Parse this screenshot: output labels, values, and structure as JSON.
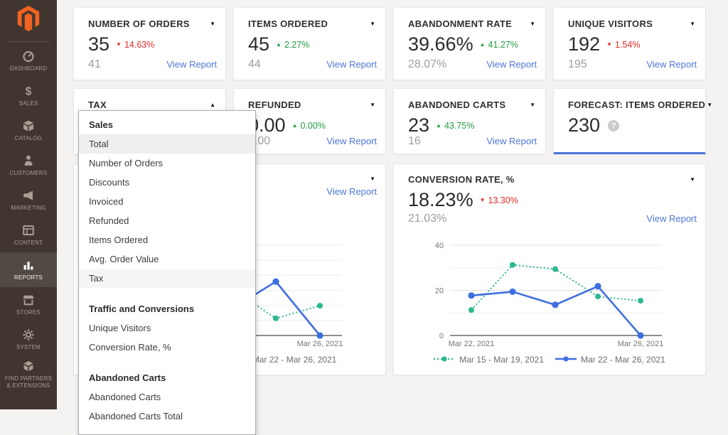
{
  "app": {
    "name": "Magento Admin — Advanced Reporting"
  },
  "colors": {
    "accent_blue": "#4a77d9",
    "chart_green": "#2bb78f",
    "chart_blue": "#3e6fe0",
    "delta_up_green": "#219a3f",
    "delta_down_red": "#e02b27",
    "sidebar_bg": "#41362f",
    "sidebar_selected_bg": "#514943",
    "logo_orange": "#f26322",
    "forecast_underline": "#4a77d9"
  },
  "sidebar": {
    "items": [
      {
        "label": "DASHBOARD",
        "icon": "gauge-icon"
      },
      {
        "label": "SALES",
        "icon": "dollar-icon"
      },
      {
        "label": "CATALOG",
        "icon": "box-icon"
      },
      {
        "label": "CUSTOMERS",
        "icon": "person-icon"
      },
      {
        "label": "MARKETING",
        "icon": "megaphone-icon"
      },
      {
        "label": "CONTENT",
        "icon": "layout-icon"
      },
      {
        "label": "REPORTS",
        "icon": "bar-chart-icon",
        "selected": true
      },
      {
        "label": "STORES",
        "icon": "storefront-icon"
      },
      {
        "label": "SYSTEM",
        "icon": "gear-icon"
      },
      {
        "label": "FIND PARTNERS & EXTENSIONS",
        "icon": "package-icon"
      }
    ]
  },
  "metric_cards": [
    {
      "id": "number-of-orders",
      "title": "NUMBER OF ORDERS",
      "value": "35",
      "delta": "14.63%",
      "delta_dir": "down",
      "prev": "41",
      "link": "View Report"
    },
    {
      "id": "items-ordered",
      "title": "ITEMS ORDERED",
      "value": "45",
      "delta": "2.27%",
      "delta_dir": "up",
      "prev": "44",
      "link": "View Report"
    },
    {
      "id": "abandonment-rate",
      "title": "ABANDONMENT RATE",
      "value": "39.66%",
      "delta": "41.27%",
      "delta_dir": "up",
      "prev": "28.07%",
      "link": "View Report"
    },
    {
      "id": "unique-visitors",
      "title": "UNIQUE VISITORS",
      "value": "192",
      "delta": "1.54%",
      "delta_dir": "down",
      "prev": "195",
      "link": "View Report"
    },
    {
      "id": "tax",
      "title": "TAX",
      "dropdown_open": true
    },
    {
      "id": "refunded",
      "title": "REFUNDED",
      "value": "0.00",
      "delta": "0.00%",
      "delta_dir": "up",
      "prev": "0.00",
      "link": "View Report"
    },
    {
      "id": "abandoned-carts",
      "title": "ABANDONED CARTS",
      "value": "23",
      "delta": "43.75%",
      "delta_dir": "up",
      "prev": "16",
      "link": "View Report"
    },
    {
      "id": "forecast-items-ordered",
      "title": "FORECAST: ITEMS ORDERED",
      "value": "230",
      "has_help": true,
      "highlighted": true
    }
  ],
  "dropdown": {
    "sections": [
      {
        "header": "Sales",
        "items": [
          "Total",
          "Number of Orders",
          "Discounts",
          "Invoiced",
          "Refunded",
          "Items Ordered",
          "Avg. Order Value",
          "Tax"
        ]
      },
      {
        "header": "Traffic and Conversions",
        "items": [
          "Unique Visitors",
          "Conversion Rate, %"
        ]
      },
      {
        "header": "Abandoned Carts",
        "items": [
          "Abandoned Carts",
          "Abandoned Carts Total"
        ]
      }
    ],
    "selected_item": "Tax",
    "hovered_item": "Total"
  },
  "chart_cards": {
    "left": {
      "link": "View Report"
    },
    "right": {
      "title": "CONVERSION RATE, %",
      "value": "18.23%",
      "delta": "13.30%",
      "delta_dir": "down",
      "prev": "21.03%",
      "link": "View Report"
    }
  },
  "chart_data": [
    {
      "id": "tax-trend",
      "type": "line",
      "title": "TAX",
      "categories": [
        "",
        "",
        "",
        "",
        "Mar 26, 2021"
      ],
      "y_ticks": [],
      "ylim": [
        0,
        40
      ],
      "grid": true,
      "legend_position": "bottom-left",
      "series": [
        {
          "name": "Mar 15 - Mar 19, 2021",
          "line_style": "dotted",
          "color": "#2bb78f",
          "values": [
            13.2,
            18.0,
            20.5,
            7.6,
            13.2
          ]
        },
        {
          "name": "Mar 22 - Mar 26, 2021",
          "line_style": "solid",
          "color": "#3e6fe0",
          "values": [
            16.4,
            14.8,
            11.7,
            23.9,
            0
          ]
        }
      ]
    },
    {
      "id": "conversion-rate",
      "type": "line",
      "title": "CONVERSION RATE, %",
      "categories": [
        "Mar 22, 2021",
        "",
        "",
        "",
        "Mar 26, 2021"
      ],
      "y_ticks": [
        0,
        20,
        40
      ],
      "ylim": [
        0,
        40
      ],
      "grid": true,
      "legend_position": "bottom-center",
      "series": [
        {
          "name": "Mar 15 - Mar 19, 2021",
          "line_style": "dotted",
          "color": "#2bb78f",
          "values": [
            11.3,
            31.3,
            29.4,
            17.3,
            15.4
          ]
        },
        {
          "name": "Mar 22 - Mar 26, 2021",
          "line_style": "solid",
          "color": "#3e6fe0",
          "values": [
            17.7,
            19.4,
            13.6,
            21.8,
            0
          ]
        }
      ]
    }
  ]
}
